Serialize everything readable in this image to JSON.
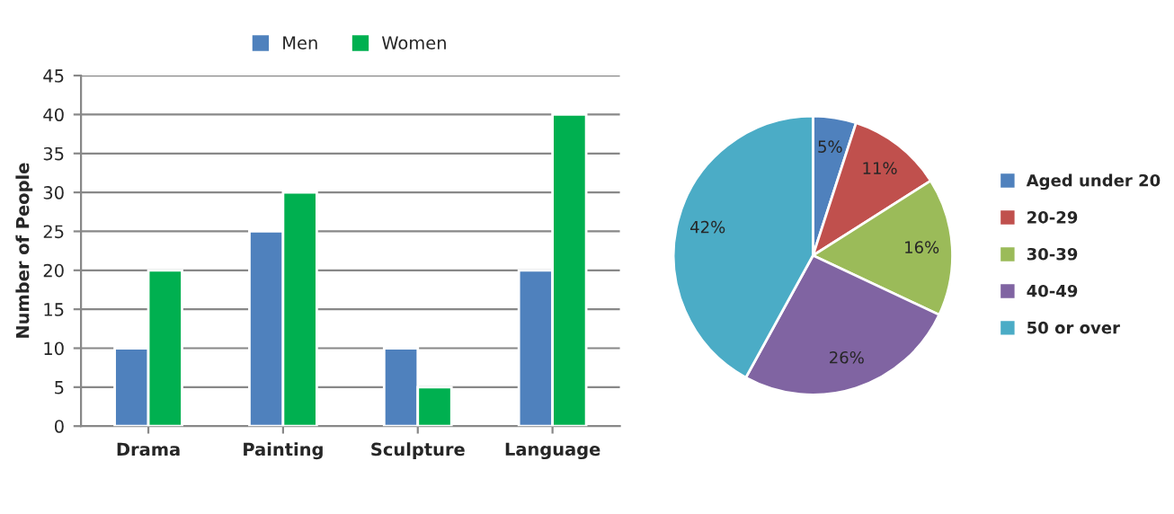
{
  "chart_data": [
    {
      "type": "bar",
      "ylabel": "Number of People",
      "categories": [
        "Drama",
        "Painting",
        "Sculpture",
        "Language"
      ],
      "series": [
        {
          "name": "Men",
          "color": "#4f81bd",
          "values": [
            10,
            25,
            10,
            20
          ]
        },
        {
          "name": "Women",
          "color": "#00b050",
          "values": [
            20,
            30,
            5,
            40
          ]
        }
      ],
      "ylim": [
        0,
        45
      ],
      "yticks": [
        0,
        5,
        10,
        15,
        20,
        25,
        30,
        35,
        40,
        45
      ],
      "grid": "y",
      "legend": "top"
    },
    {
      "type": "pie",
      "categories": [
        "Aged under 20",
        "20-29",
        "30-39",
        "40-49",
        "50 or over"
      ],
      "values": [
        5,
        11,
        16,
        26,
        42
      ],
      "colors": [
        "#4f81bd",
        "#c0504d",
        "#9bbb59",
        "#8064a2",
        "#4bacc6"
      ],
      "value_labels": [
        "5%",
        "11%",
        "16%",
        "26%",
        "42%"
      ],
      "legend": "right"
    }
  ]
}
